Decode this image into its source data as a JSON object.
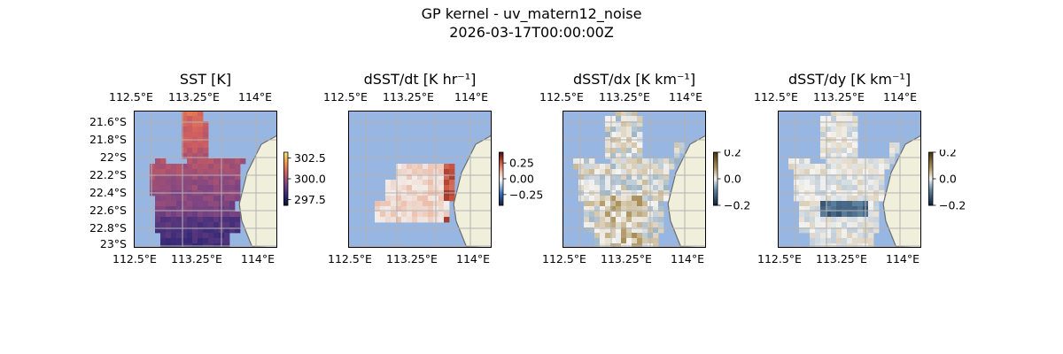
{
  "figure": {
    "title_line1": "GP kernel - uv_matern12_noise",
    "title_line2": "2026-03-17T00:00:00Z"
  },
  "colors": {
    "ocean": "#97b6e1",
    "land": "#efefdb",
    "coast": "#6e6e6e",
    "grid": "#b3b3b3"
  },
  "chart_data": [
    {
      "type": "heatmap",
      "title": "SST [K]",
      "xlabel": "",
      "ylabel": "",
      "x_ticks": [
        "112.5°E",
        "113.25°E",
        "114°E"
      ],
      "y_ticks": [
        "21.6°S",
        "21.8°S",
        "22°S",
        "22.2°S",
        "22.4°S",
        "22.6°S",
        "22.8°S",
        "23°S"
      ],
      "xlim": [
        112.5,
        114.25
      ],
      "ylim": [
        -23.0,
        -21.5
      ],
      "grid": true,
      "colormap": "thermal",
      "colorbar_range": [
        296.8,
        303.2
      ],
      "colorbar_ticks": [
        "302.5",
        "300.0",
        "297.5"
      ],
      "colorbar_tick_values": [
        302.5,
        300.0,
        297.5
      ]
    },
    {
      "type": "heatmap",
      "title": "dSST/dt [K hr⁻¹]",
      "x_ticks": [
        "112.5°E",
        "113.25°E",
        "114°E"
      ],
      "xlim": [
        112.5,
        114.25
      ],
      "ylim": [
        -23.0,
        -21.5
      ],
      "grid": true,
      "colormap": "balance",
      "colorbar_range": [
        -0.42,
        0.42
      ],
      "colorbar_ticks": [
        "0.25",
        "0.00",
        "−0.25"
      ],
      "colorbar_tick_values": [
        0.25,
        0.0,
        -0.25
      ]
    },
    {
      "type": "heatmap",
      "title": "dSST/dx [K km⁻¹]",
      "x_ticks": [
        "112.5°E",
        "113.25°E",
        "114°E"
      ],
      "xlim": [
        112.5,
        114.25
      ],
      "ylim": [
        -23.0,
        -21.5
      ],
      "grid": true,
      "colormap": "diff",
      "colorbar_range": [
        -0.2,
        0.2
      ],
      "colorbar_ticks": [
        "0.2",
        "0.0",
        "−0.2"
      ],
      "colorbar_tick_values": [
        0.2,
        0.0,
        -0.2
      ]
    },
    {
      "type": "heatmap",
      "title": "dSST/dy [K km⁻¹]",
      "x_ticks": [
        "112.5°E",
        "113.25°E",
        "114°E"
      ],
      "xlim": [
        112.5,
        114.25
      ],
      "ylim": [
        -23.0,
        -21.5
      ],
      "grid": true,
      "colormap": "diff",
      "colorbar_range": [
        -0.2,
        0.2
      ],
      "colorbar_ticks": [
        "0.2",
        "0.0",
        "−0.2"
      ],
      "colorbar_tick_values": [
        0.2,
        0.0,
        -0.2
      ]
    }
  ]
}
